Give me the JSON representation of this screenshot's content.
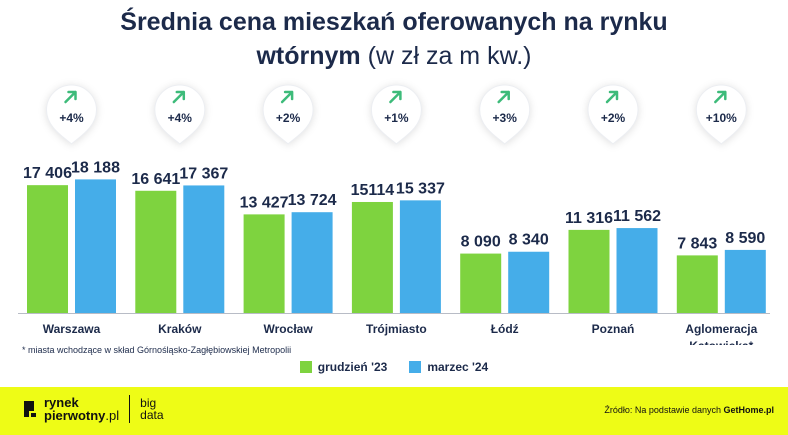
{
  "title": {
    "line1": "Średnia cena mieszkań oferowanych na rynku",
    "line2_bold": "wtórnym",
    "line2_rest": " (w zł za m kw.)"
  },
  "colors": {
    "green": "#7ed33f",
    "blue": "#45ade9",
    "navy": "#1c2a4a",
    "arrow": "#3dbb7a",
    "footer": "#eefc16"
  },
  "chart_data": {
    "type": "bar",
    "categories": [
      "Warszawa",
      "Kraków",
      "Wrocław",
      "Trójmiasto",
      "Łódź",
      "Poznań",
      "Aglomeracja Katowicka*"
    ],
    "series": [
      {
        "name": "grudzień '23",
        "values": [
          17406,
          16641,
          13427,
          15114,
          8090,
          11316,
          7843
        ],
        "labels": [
          "17 406",
          "16 641",
          "13 427",
          "15114",
          "8 090",
          "11 316",
          "7 843"
        ]
      },
      {
        "name": "marzec '24",
        "values": [
          18188,
          17367,
          13724,
          15337,
          8340,
          11562,
          8590
        ],
        "labels": [
          "18 188",
          "17 367",
          "13 724",
          "15 337",
          "8 340",
          "11 562",
          "8 590"
        ]
      }
    ],
    "changes": [
      "+4%",
      "+4%",
      "+2%",
      "+1%",
      "+3%",
      "+2%",
      "+10%"
    ]
  },
  "footnote": "* miasta wchodzące w skład Górnośląsko-Zagłębiowskiej Metropolii",
  "legend": [
    "grudzień '23",
    "marzec '24"
  ],
  "footer": {
    "logo_line1": "rynek",
    "logo_line2a": "pierwotny",
    "logo_line2b": ".pl",
    "logo_big1": "big",
    "logo_big2": "data",
    "source_prefix": "Źródło: Na podstawie danych ",
    "source_name": "GetHome.pl"
  }
}
